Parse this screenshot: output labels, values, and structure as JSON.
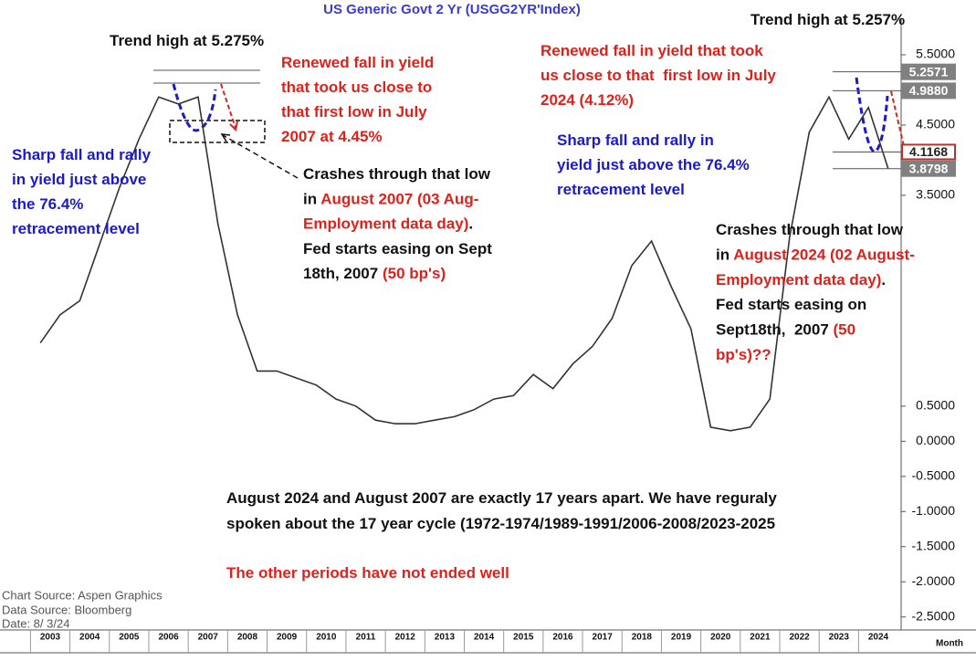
{
  "chart_data": {
    "type": "line",
    "title": "US  Generic  Govt  2  Yr  (USGG2YR'Index)",
    "categories": [
      "2003",
      null,
      "2004",
      null,
      "2005",
      null,
      "2006",
      null,
      "2007",
      null,
      "2008",
      null,
      "2009",
      null,
      "2010",
      null,
      "2011",
      null,
      "2012",
      null,
      "2013",
      null,
      "2014",
      null,
      "2015",
      null,
      "2016",
      null,
      "2017",
      null,
      "2018",
      null,
      "2019",
      null,
      "2020",
      null,
      "2021",
      null,
      "2022",
      null,
      "2023",
      null,
      "2024",
      null
    ],
    "values": [
      1.4,
      1.8,
      2.0,
      2.8,
      3.6,
      4.3,
      4.9,
      4.8,
      4.9,
      3.1,
      1.8,
      1.0,
      1.0,
      0.9,
      0.8,
      0.6,
      0.5,
      0.3,
      0.25,
      0.25,
      0.3,
      0.35,
      0.45,
      0.6,
      0.65,
      0.95,
      0.75,
      1.1,
      1.35,
      1.75,
      2.5,
      2.85,
      2.2,
      1.6,
      0.2,
      0.15,
      0.2,
      0.6,
      2.9,
      4.4,
      4.9,
      4.3,
      4.75,
      3.88
    ],
    "color": "#333333",
    "ylim": [
      -2.75,
      6.0
    ],
    "yticks": [
      {
        "value": -2.5,
        "label": "-2.5000"
      },
      {
        "value": -2.0,
        "label": "-2.0000"
      },
      {
        "value": -1.5,
        "label": "-1.5000"
      },
      {
        "value": -1.0,
        "label": "-1.0000"
      },
      {
        "value": -0.5,
        "label": "-0.5000"
      },
      {
        "value": 0,
        "label": "0.0000"
      },
      {
        "value": 0.5,
        "label": "0.5000"
      },
      {
        "value": 3.5,
        "label": "3.5000"
      },
      {
        "value": 4.5,
        "label": "4.5000"
      },
      {
        "value": 5.5,
        "label": "5.5000"
      }
    ],
    "reference_levels": [
      {
        "value": 5.2571,
        "label": "5.2571",
        "color": "#808080"
      },
      {
        "value": 4.988,
        "label": "4.9880",
        "color": "#808080"
      },
      {
        "value": 4.1168,
        "label": "4.1168",
        "color": "#c0302a"
      },
      {
        "value": 3.8798,
        "label": "3.8798",
        "color": "#808080"
      }
    ],
    "x_axis_label": "Month",
    "sources": [
      "Chart Source:  Aspen Graphics",
      "Data Source:  Bloomberg",
      "Date:    8/  3/24"
    ],
    "annotations": [
      {
        "lines": [
          [
            {
              "text": "Trend high at 5.275%",
              "color": "#111111"
            }
          ]
        ]
      },
      {
        "lines": [
          [
            {
              "text": "Renewed fall in yield",
              "color": "#e0201b"
            }
          ],
          [
            {
              "text": "that took us close to",
              "color": "#e0201b"
            }
          ],
          [
            {
              "text": "that first low in July",
              "color": "#e0201b"
            }
          ],
          [
            {
              "text": "2007 at 4.45%",
              "color": "#e0201b"
            }
          ]
        ]
      },
      {
        "lines": [
          [
            {
              "text": "Sharp fall and rally",
              "color": "#1a1acc"
            }
          ],
          [
            {
              "text": "in yield just above",
              "color": "#1a1acc"
            }
          ],
          [
            {
              "text": "the 76.4%",
              "color": "#1a1acc"
            }
          ],
          [
            {
              "text": "retracement level",
              "color": "#1a1acc"
            }
          ]
        ]
      },
      {
        "lines": [
          [
            {
              "text": "Crashes through that low",
              "color": "#111111"
            }
          ],
          [
            {
              "text": "in ",
              "color": "#111111"
            },
            {
              "text": "August 2007 (03 Aug-",
              "color": "#e0201b"
            }
          ],
          [
            {
              "text": "Employment data day)",
              "color": "#e0201b"
            },
            {
              "text": ".",
              "color": "#111111"
            }
          ],
          [
            {
              "text": "Fed starts easing on Sept",
              "color": "#111111"
            }
          ],
          [
            {
              "text": "18th, 2007 ",
              "color": "#111111"
            },
            {
              "text": "(50 bp's)",
              "color": "#e0201b"
            }
          ]
        ]
      },
      {
        "lines": [
          [
            {
              "text": "Trend high at 5.257%",
              "color": "#111111"
            }
          ]
        ]
      },
      {
        "lines": [
          [
            {
              "text": "Renewed fall in yield that took",
              "color": "#e0201b"
            }
          ],
          [
            {
              "text": "us close to that  first low in July",
              "color": "#e0201b"
            }
          ],
          [
            {
              "text": "2024 (4.12%)",
              "color": "#e0201b"
            }
          ]
        ]
      },
      {
        "lines": [
          [
            {
              "text": "Sharp fall and rally in",
              "color": "#1a1acc"
            }
          ],
          [
            {
              "text": "yield just above the 76.4%",
              "color": "#1a1acc"
            }
          ],
          [
            {
              "text": "retracement level",
              "color": "#1a1acc"
            }
          ]
        ]
      },
      {
        "lines": [
          [
            {
              "text": "Crashes through that low",
              "color": "#111111"
            }
          ],
          [
            {
              "text": "in ",
              "color": "#111111"
            },
            {
              "text": "August 2024 (02 August-",
              "color": "#e0201b"
            }
          ],
          [
            {
              "text": "Employment data day)",
              "color": "#e0201b"
            },
            {
              "text": ".",
              "color": "#111111"
            }
          ],
          [
            {
              "text": "Fed starts easing on",
              "color": "#111111"
            }
          ],
          [
            {
              "text": "Sept18th,  2007 ",
              "color": "#111111"
            },
            {
              "text": "(50",
              "color": "#e0201b"
            }
          ],
          [
            {
              "text": "bp's)??",
              "color": "#e0201b"
            }
          ]
        ]
      },
      {
        "lines": [
          [
            {
              "text": "August 2024 and August 2007 are exactly 17 years apart. We have reguraly",
              "color": "#111111"
            }
          ],
          [
            {
              "text": "spoken about the 17 year cycle (1972-1974/1989-1991/2006-2008/2023-2025",
              "color": "#111111"
            }
          ]
        ]
      },
      {
        "lines": [
          [
            {
              "text": "The other periods have not ended well",
              "color": "#e0201b"
            }
          ]
        ]
      }
    ]
  }
}
